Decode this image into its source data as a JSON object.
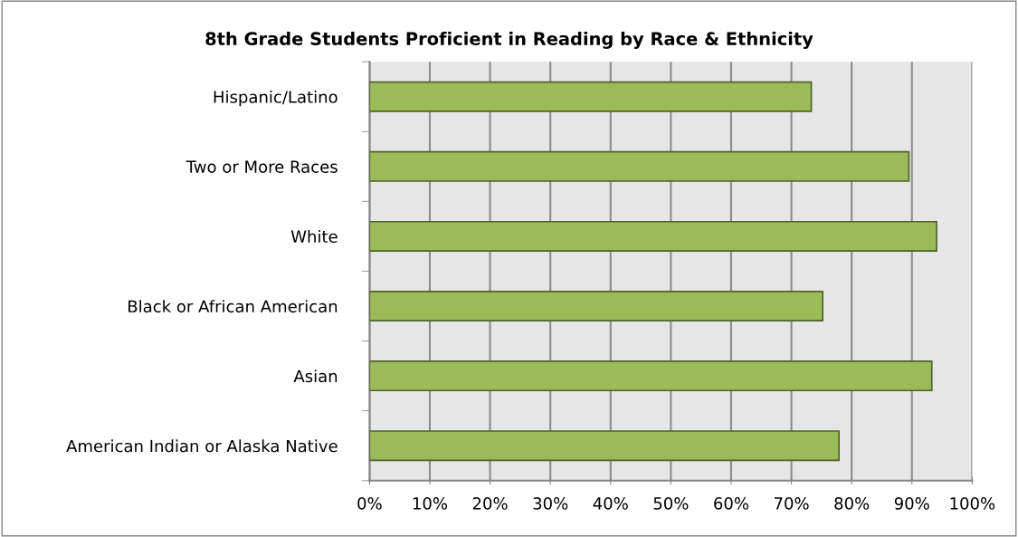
{
  "chart_data": {
    "type": "bar",
    "orientation": "horizontal",
    "title": "8th Grade Students Proficient in Reading by Race & Ethnicity",
    "categories": [
      "Hispanic/Latino",
      "Two or More Races",
      "White",
      "Black or African American",
      "Asian",
      "American Indian or Alaska Native"
    ],
    "values": [
      73.3,
      89.5,
      94.1,
      75.2,
      93.3,
      77.9
    ],
    "color": "#9bbb59",
    "xlim": [
      0,
      100
    ],
    "xticks": [
      {
        "value": 0,
        "label": "0%"
      },
      {
        "value": 10,
        "label": "10%"
      },
      {
        "value": 20,
        "label": "20%"
      },
      {
        "value": 30,
        "label": "30%"
      },
      {
        "value": 40,
        "label": "40%"
      },
      {
        "value": 50,
        "label": "50%"
      },
      {
        "value": 60,
        "label": "60%"
      },
      {
        "value": 70,
        "label": "70%"
      },
      {
        "value": 80,
        "label": "80%"
      },
      {
        "value": 90,
        "label": "90%"
      },
      {
        "value": 100,
        "label": "100%"
      }
    ],
    "grid": "x",
    "legend": false
  }
}
